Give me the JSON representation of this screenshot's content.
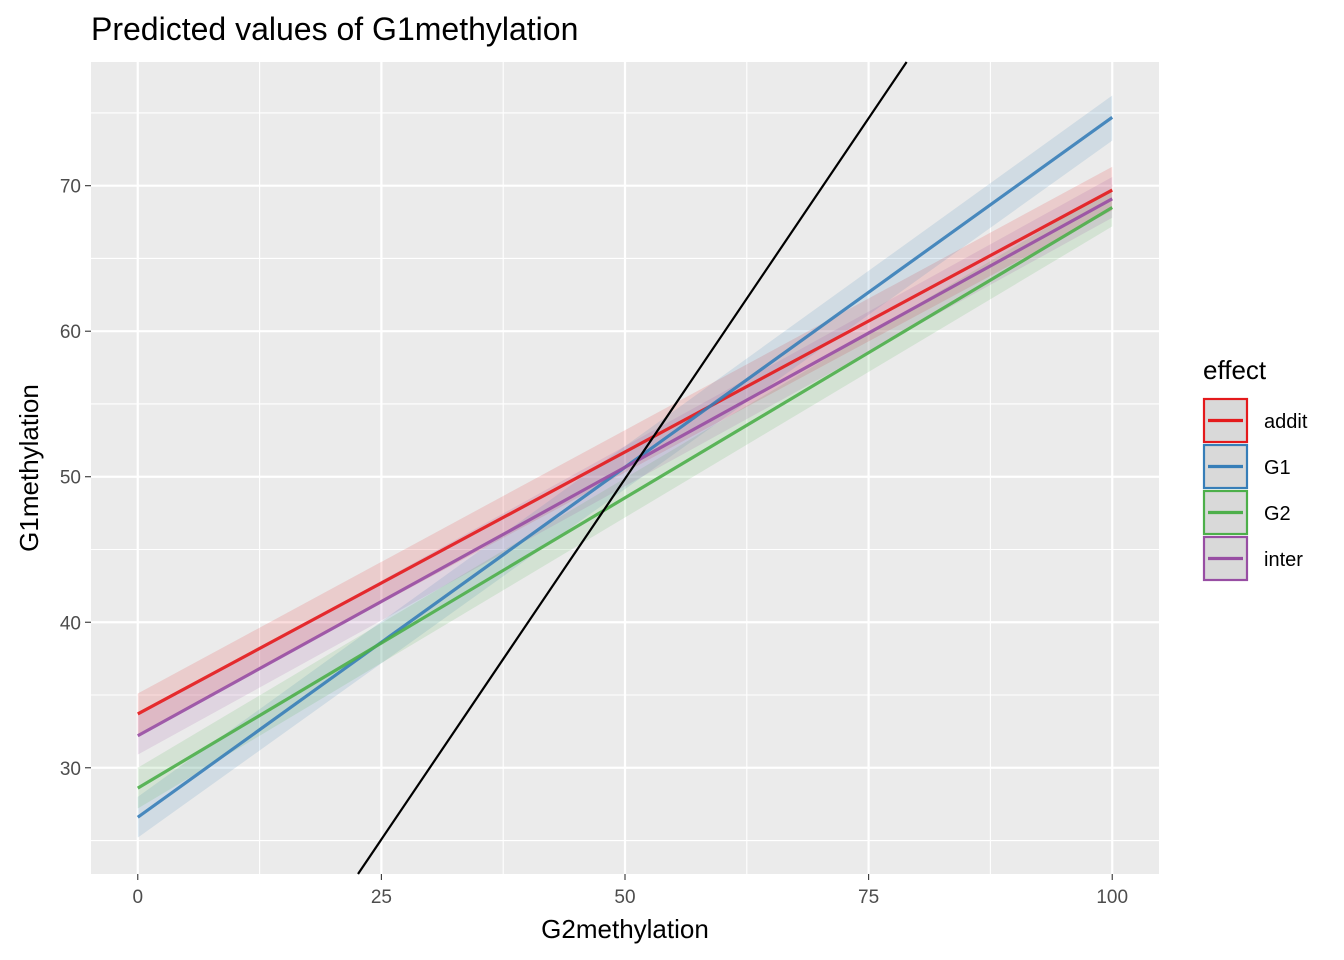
{
  "chart_data": {
    "type": "line",
    "title": "Predicted values of G1methylation",
    "xlabel": "G2methylation",
    "ylabel": "G1methylation",
    "xlim": [
      -4.8,
      104.8
    ],
    "ylim": [
      22.7,
      78.5
    ],
    "x_ticks": [
      0,
      25,
      50,
      75,
      100
    ],
    "x_tick_labels": [
      "0",
      "25",
      "50",
      "75",
      "100"
    ],
    "y_ticks": [
      30,
      40,
      50,
      60,
      70
    ],
    "y_tick_labels": [
      "30",
      "40",
      "50",
      "60",
      "70"
    ],
    "grid": true,
    "background": "#ebebeb",
    "legend": {
      "title": "effect",
      "position": "right"
    },
    "series": [
      {
        "name": "addit",
        "color": "#e41a1c",
        "x": [
          0,
          100
        ],
        "y": [
          33.7,
          69.7
        ],
        "lower": [
          32.3,
          68.3
        ],
        "upper": [
          35.1,
          71.3
        ]
      },
      {
        "name": "G1",
        "color": "#377eb8",
        "x": [
          0,
          100
        ],
        "y": [
          26.6,
          74.7
        ],
        "lower": [
          25.2,
          73.1
        ],
        "upper": [
          28.0,
          76.2
        ]
      },
      {
        "name": "G2",
        "color": "#4daf4a",
        "x": [
          0,
          100
        ],
        "y": [
          28.6,
          68.5
        ],
        "lower": [
          27.2,
          67.2
        ],
        "upper": [
          30.0,
          69.8
        ]
      },
      {
        "name": "inter",
        "color": "#984ea3",
        "x": [
          0,
          100
        ],
        "y": [
          32.2,
          69.1
        ],
        "lower": [
          30.9,
          67.8
        ],
        "upper": [
          33.6,
          70.6
        ]
      }
    ],
    "reference_line": {
      "x": [
        22.6,
        78.9
      ],
      "y": [
        22.7,
        78.5
      ],
      "color": "#000000"
    }
  }
}
